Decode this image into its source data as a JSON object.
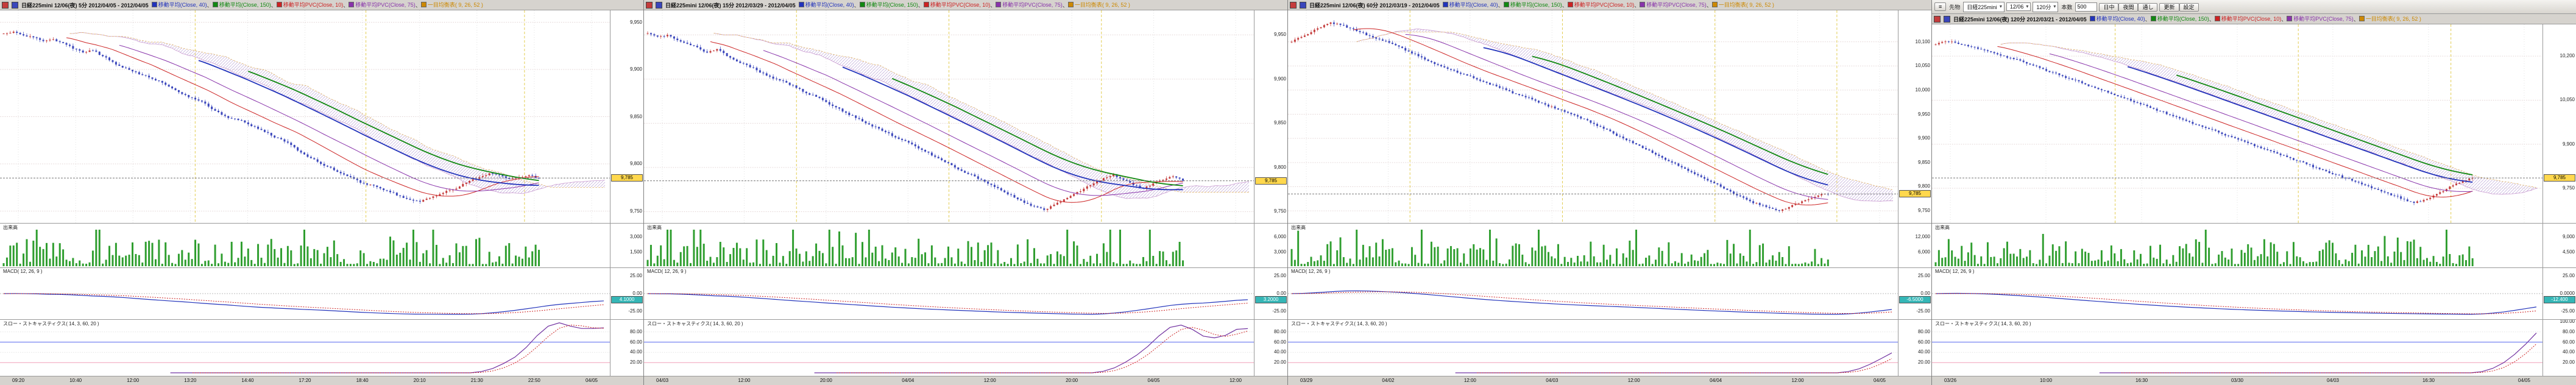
{
  "icons": {
    "caret_down": "▾"
  },
  "colors": {
    "app_bg": "#d6d3ce",
    "chart_bg": "#ffffff",
    "grid": "#d9c6c6",
    "time_grid": "#e2e2e2",
    "session_line": "#e3cd52",
    "candle_up": "#c43b3b",
    "candle_down": "#3a46bb",
    "ma_fast": "#cc2222",
    "ma_mid": "#8833aa",
    "ma_slow": "#2233bb",
    "ma_long": "#118811",
    "cloud_hatch": "#c6b3dd",
    "cloud_edge_a": "#c99ad0",
    "cloud_edge_b": "#e0b36a",
    "volume_bar": "#2f9e2f",
    "macd_line": "#2233bb",
    "macd_signal": "#cc2222",
    "stoch_k": "#7030a0",
    "stoch_d": "#cc2222",
    "stoch_hi_line": "#5566ee",
    "stoch_lo_line": "#f2a0b8",
    "last_line": "#777777",
    "last_box_bg": "#ffd84d",
    "macd_box_bg": "#35b6b6"
  },
  "indicators": [
    {
      "label": "移動平均(Close, 40)",
      "color": "#2233bb"
    },
    {
      "label": "移動平均(Close, 150)",
      "color": "#118811"
    },
    {
      "label": "移動平均PVC(Close, 10)",
      "color": "#cc2222"
    },
    {
      "label": "移動平均PVC(Close, 75)",
      "color": "#8833aa"
    },
    {
      "label": "一目均衡表( 9, 26, 52 )",
      "color": "#cc8800"
    }
  ],
  "panels": [
    {
      "legend": {
        "title": "日経225mini 12/06(夜) 5分 2012/04/05 - 2012/04/05"
      },
      "panes": {
        "volume_label": "出来高",
        "macd_label": "MACD( 12, 26, 9 )",
        "stoch_label": "スロー・ストキャスティクス( 14, 3, 60, 20 )"
      },
      "price_axis": {
        "min": 9740,
        "max": 9960,
        "ticks": [
          [
            9950,
            "9,950"
          ],
          [
            9900,
            "9,900"
          ],
          [
            9850,
            "9,850"
          ],
          [
            9800,
            "9,800"
          ],
          [
            9750,
            "9,750"
          ]
        ],
        "last_value": 9785,
        "last_label": "9,785"
      },
      "volume_axis": {
        "ticks": [
          [
            0.3,
            "3,000"
          ],
          [
            0.65,
            "1,500"
          ]
        ]
      },
      "macd_axis": {
        "ticks": [
          [
            0.15,
            "25.00"
          ],
          [
            0.5,
            "0.00"
          ],
          [
            0.85,
            "-25.00"
          ]
        ],
        "box": "4.1000",
        "box_frac": 0.62
      },
      "stoch_axis": {
        "ticks": [
          [
            80,
            "80.00"
          ],
          [
            60,
            "60.00"
          ],
          [
            40,
            "40.00"
          ],
          [
            20,
            "20.00"
          ]
        ]
      },
      "levels": {
        "stoch_hi": 60,
        "stoch_lo": 20
      },
      "v_lines": [
        0.32,
        0.6,
        0.86
      ],
      "closes": [
        9938,
        9940,
        9936,
        9934,
        9930,
        9932,
        9928,
        9922,
        9918,
        9920,
        9914,
        9908,
        9902,
        9898,
        9894,
        9890,
        9886,
        9880,
        9874,
        9870,
        9866,
        9858,
        9852,
        9848,
        9846,
        9840,
        9836,
        9830,
        9826,
        9820,
        9812,
        9806,
        9800,
        9796,
        9790,
        9786,
        9780,
        9778,
        9774,
        9770,
        9766,
        9762,
        9760,
        9764,
        9768,
        9772,
        9776,
        9782,
        9786,
        9790,
        9788,
        9784,
        9786,
        9788,
        9785
      ],
      "time_labels": [
        "09:20",
        "10:40",
        "12:00",
        "13:20",
        "14:40",
        "17:20",
        "18:40",
        "20:10",
        "21:30",
        "22:50",
        "04/05"
      ]
    },
    {
      "legend": {
        "title": "日経225mini 12/06(夜) 15分 2012/03/29 - 2012/04/05"
      },
      "panes": {
        "volume_label": "出来高",
        "macd_label": "MACD( 12, 26, 9 )",
        "stoch_label": "スロー・ストキャスティクス( 14, 3, 60, 20 )"
      },
      "price_axis": {
        "min": 9740,
        "max": 9975,
        "ticks": [
          [
            9950,
            "9,950"
          ],
          [
            9900,
            "9,900"
          ],
          [
            9850,
            "9,850"
          ],
          [
            9800,
            "9,800"
          ],
          [
            9750,
            "9,750"
          ]
        ],
        "last_value": 9785,
        "last_label": "9,785"
      },
      "volume_axis": {
        "ticks": [
          [
            0.3,
            "6,000"
          ],
          [
            0.65,
            "3,000"
          ]
        ]
      },
      "macd_axis": {
        "ticks": [
          [
            0.15,
            "25.00"
          ],
          [
            0.5,
            "0.00"
          ],
          [
            0.85,
            "-25.00"
          ]
        ],
        "box": "3.2000",
        "box_frac": 0.62
      },
      "stoch_axis": {
        "ticks": [
          [
            80,
            "80.00"
          ],
          [
            60,
            "60.00"
          ],
          [
            40,
            "40.00"
          ],
          [
            20,
            "20.00"
          ]
        ]
      },
      "levels": {
        "stoch_hi": 60,
        "stoch_lo": 20
      },
      "v_lines": [
        0.25,
        0.5,
        0.75
      ],
      "closes": [
        9952,
        9948,
        9950,
        9944,
        9940,
        9936,
        9930,
        9934,
        9926,
        9920,
        9916,
        9910,
        9904,
        9900,
        9896,
        9890,
        9884,
        9880,
        9874,
        9868,
        9862,
        9856,
        9850,
        9846,
        9840,
        9834,
        9830,
        9824,
        9818,
        9812,
        9806,
        9800,
        9794,
        9790,
        9784,
        9778,
        9772,
        9766,
        9760,
        9756,
        9752,
        9758,
        9764,
        9770,
        9776,
        9782,
        9788,
        9792,
        9786,
        9780,
        9776,
        9782,
        9786,
        9790,
        9785
      ],
      "time_labels": [
        "04/03",
        "12:00",
        "20:00",
        "04/04",
        "12:00",
        "20:00",
        "04/05",
        "12:00"
      ]
    },
    {
      "legend": {
        "title": "日経225mini 12/06(夜) 60分 2012/03/19 - 2012/04/05"
      },
      "panes": {
        "volume_label": "出来高",
        "macd_label": "MACD( 12, 26, 9 )",
        "stoch_label": "スロー・ストキャスティクス( 14, 3, 60, 20 )"
      },
      "price_axis": {
        "min": 9730,
        "max": 10160,
        "ticks": [
          [
            10100,
            "10,100"
          ],
          [
            10050,
            "10,050"
          ],
          [
            10000,
            "10,000"
          ],
          [
            9950,
            "9,950"
          ],
          [
            9900,
            "9,900"
          ],
          [
            9850,
            "9,850"
          ],
          [
            9800,
            "9,800"
          ],
          [
            9750,
            "9,750"
          ]
        ],
        "last_value": 9785,
        "last_label": "9,785"
      },
      "volume_axis": {
        "ticks": [
          [
            0.3,
            "12,000"
          ],
          [
            0.65,
            "6,000"
          ]
        ]
      },
      "macd_axis": {
        "ticks": [
          [
            0.15,
            "25.00"
          ],
          [
            0.5,
            "0.00"
          ],
          [
            0.85,
            "-25.00"
          ]
        ],
        "box": "-6.5000",
        "box_frac": 0.62
      },
      "stoch_axis": {
        "ticks": [
          [
            80,
            "80.00"
          ],
          [
            60,
            "60.00"
          ],
          [
            40,
            "40.00"
          ],
          [
            20,
            "20.00"
          ]
        ]
      },
      "levels": {
        "stoch_hi": 60,
        "stoch_lo": 20
      },
      "v_lines": [
        0.2,
        0.45,
        0.7,
        0.9
      ],
      "closes": [
        10100,
        10110,
        10120,
        10130,
        10140,
        10135,
        10128,
        10120,
        10112,
        10105,
        10098,
        10090,
        10080,
        10070,
        10060,
        10052,
        10044,
        10036,
        10030,
        10022,
        10015,
        10008,
        10000,
        9992,
        9985,
        9978,
        9970,
        9962,
        9955,
        9948,
        9940,
        9930,
        9920,
        9910,
        9900,
        9890,
        9880,
        9870,
        9860,
        9850,
        9840,
        9830,
        9820,
        9810,
        9800,
        9790,
        9780,
        9770,
        9762,
        9756,
        9750,
        9758,
        9766,
        9774,
        9782,
        9785
      ],
      "time_labels": [
        "03/29",
        "04/02",
        "12:00",
        "04/03",
        "12:00",
        "04/04",
        "12:00",
        "04/05"
      ]
    },
    {
      "toolbar": {
        "menu_icon": "≡",
        "market_label": "先物",
        "symbol": "日経225mini",
        "contract": "12/06",
        "interval": "120分",
        "bars_label": "本数",
        "bars_value": "500",
        "session_buttons": [
          "日中",
          "夜間",
          "通し"
        ],
        "action_buttons": [
          "更新",
          "設定"
        ]
      },
      "legend": {
        "title": "日経225mini 12/06(夜) 120分 2012/03/21 - 2012/04/05"
      },
      "panes": {
        "volume_label": "出来高",
        "macd_label": "MACD( 12, 26, 9 )",
        "stoch_label": "スロー・ストキャスティクス( 14, 3, 60, 20 )"
      },
      "price_axis": {
        "min": 9640,
        "max": 10300,
        "ticks": [
          [
            10200,
            "10,200"
          ],
          [
            10050,
            "10,050"
          ],
          [
            9900,
            "9,900"
          ],
          [
            9750,
            "9,750"
          ]
        ],
        "last_value": 9785,
        "last_label": "9,785"
      },
      "volume_axis": {
        "ticks": [
          [
            0.3,
            "9,000"
          ],
          [
            0.65,
            "4,500"
          ]
        ]
      },
      "macd_axis": {
        "ticks": [
          [
            0.15,
            "25.00"
          ],
          [
            0.5,
            "0.0000"
          ],
          [
            0.85,
            "-25.00"
          ]
        ],
        "box": "-12.400",
        "box_frac": 0.62
      },
      "stoch_axis": {
        "ticks": [
          [
            100,
            "100.00"
          ],
          [
            80,
            "80.00"
          ],
          [
            60,
            "60.00"
          ],
          [
            40,
            "40.00"
          ],
          [
            20,
            "20.00"
          ]
        ]
      },
      "levels": {
        "stoch_hi": 60,
        "stoch_lo": 20
      },
      "v_lines": [
        0.3,
        0.6,
        0.85
      ],
      "closes": [
        10240,
        10250,
        10246,
        10238,
        10230,
        10220,
        10210,
        10200,
        10190,
        10180,
        10168,
        10156,
        10144,
        10132,
        10120,
        10108,
        10096,
        10084,
        10072,
        10060,
        10048,
        10036,
        10024,
        10012,
        10000,
        9988,
        9976,
        9964,
        9952,
        9940,
        9928,
        9916,
        9904,
        9892,
        9880,
        9868,
        9856,
        9844,
        9832,
        9820,
        9808,
        9796,
        9784,
        9772,
        9760,
        9748,
        9736,
        9724,
        9712,
        9700,
        9710,
        9725,
        9740,
        9760,
        9775,
        9785
      ],
      "time_labels": [
        "03/26",
        "10:00",
        "16:30",
        "03/30",
        "04/03",
        "16:30",
        "04/05"
      ]
    }
  ]
}
